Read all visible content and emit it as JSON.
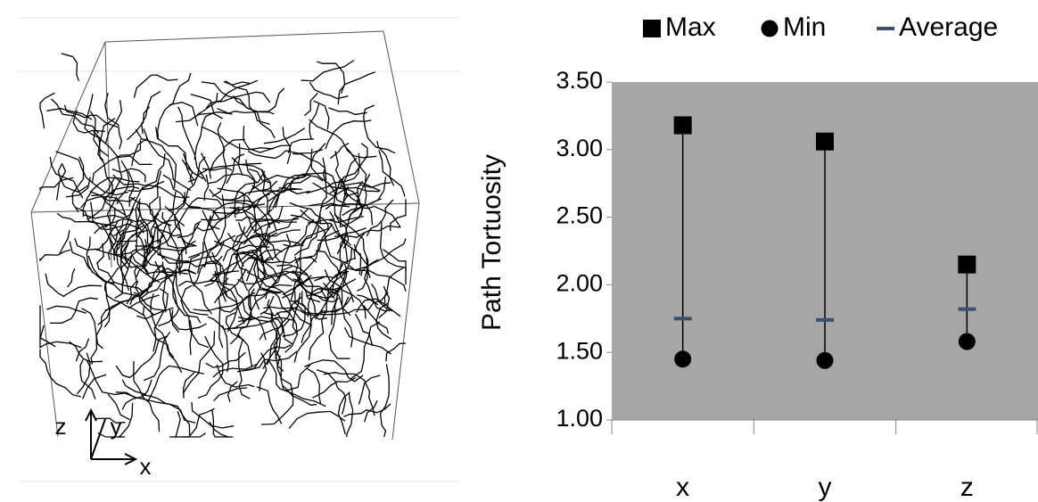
{
  "figure": {
    "axis_labels": [
      "z",
      "y",
      "x"
    ]
  },
  "chart_data": {
    "type": "range",
    "y_label": "Path Tortuosity",
    "categories": [
      "x",
      "y",
      "z"
    ],
    "series": [
      {
        "name": "Max",
        "color": "#000000",
        "marker": "square",
        "values": [
          3.18,
          3.06,
          2.15
        ]
      },
      {
        "name": "Min",
        "color": "#000000",
        "marker": "circle",
        "values": [
          1.45,
          1.44,
          1.58
        ]
      },
      {
        "name": "Average",
        "color": "#3d4f6b",
        "marker": "dash",
        "values": [
          1.75,
          1.74,
          1.82
        ]
      }
    ],
    "ylim": [
      1,
      3.5
    ],
    "yticks": [
      {
        "value": 1,
        "label": "1.00"
      },
      {
        "value": 1.5,
        "label": "1.50"
      },
      {
        "value": 2,
        "label": "2.00"
      },
      {
        "value": 2.5,
        "label": "2.50"
      },
      {
        "value": 3,
        "label": "3.00"
      },
      {
        "value": 3.5,
        "label": "3.50"
      }
    ],
    "plot_background": "#a6a6a6",
    "legend": "top"
  }
}
